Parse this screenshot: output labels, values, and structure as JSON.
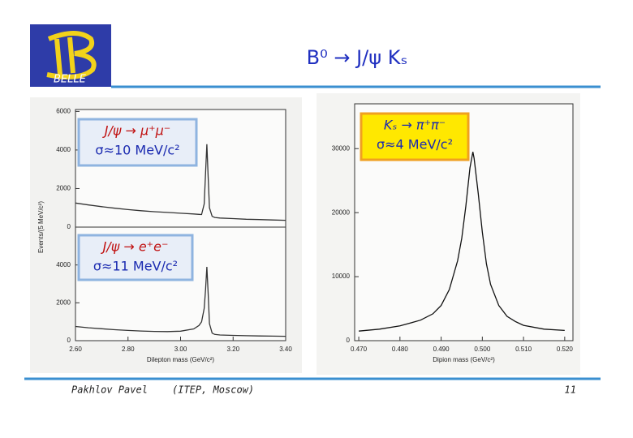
{
  "slide": {
    "title": "B⁰ → J/ψ Kₛ",
    "logo_text": "BELLE",
    "author": "Pakhlov Pavel",
    "affiliation": "(ITEP, Moscow)",
    "page_number": "11"
  },
  "chart_data": [
    {
      "type": "line",
      "annotation": [
        "J/ψ → μ⁺μ⁻",
        "σ≈10 MeV/c²"
      ],
      "ylabel": "Events/(5 MeV/c²)",
      "xlim": [
        2.6,
        3.4
      ],
      "ylim": [
        0,
        6100
      ],
      "yticks": [
        0,
        2000,
        4000,
        6000
      ],
      "series": [
        {
          "color": "#333333",
          "x": [
            2.6,
            2.65,
            2.7,
            2.75,
            2.8,
            2.85,
            2.9,
            2.95,
            3.0,
            3.05,
            3.07,
            3.08,
            3.09,
            3.095,
            3.1,
            3.105,
            3.11,
            3.12,
            3.13,
            3.15,
            3.2,
            3.25,
            3.3,
            3.35,
            3.4
          ],
          "values": [
            1250,
            1150,
            1060,
            980,
            910,
            850,
            800,
            760,
            720,
            680,
            660,
            650,
            1200,
            2800,
            4300,
            2600,
            1000,
            560,
            500,
            470,
            440,
            410,
            390,
            370,
            355
          ]
        }
      ]
    },
    {
      "type": "line",
      "annotation": [
        "J/ψ → e⁺e⁻",
        "σ≈11 MeV/c²"
      ],
      "xlabel": "Dilepton mass (GeV/c²)",
      "xlim": [
        2.6,
        3.4
      ],
      "ylim": [
        0,
        6000
      ],
      "yticks": [
        0,
        2000,
        4000
      ],
      "xticks": [
        {
          "value": 2.6,
          "label": "2.60"
        },
        {
          "value": 2.8,
          "label": "2.80"
        },
        {
          "value": 3.0,
          "label": "3.00"
        },
        {
          "value": 3.2,
          "label": "3.20"
        },
        {
          "value": 3.4,
          "label": "3.40"
        }
      ],
      "series": [
        {
          "color": "#333333",
          "x": [
            2.6,
            2.65,
            2.7,
            2.75,
            2.8,
            2.85,
            2.9,
            2.95,
            3.0,
            3.05,
            3.07,
            3.08,
            3.09,
            3.095,
            3.1,
            3.105,
            3.11,
            3.12,
            3.13,
            3.15,
            3.2,
            3.25,
            3.3,
            3.35,
            3.4
          ],
          "values": [
            750,
            680,
            630,
            580,
            540,
            510,
            490,
            480,
            500,
            620,
            800,
            1000,
            1700,
            2700,
            3900,
            2500,
            900,
            400,
            330,
            300,
            280,
            260,
            250,
            240,
            230
          ]
        }
      ]
    },
    {
      "type": "line",
      "annotation": [
        "Kₛ → π⁺π⁻",
        "σ≈4 MeV/c²"
      ],
      "xlabel": "Dipion mass (GeV/c²)",
      "xlim": [
        0.469,
        0.522
      ],
      "ylim": [
        0,
        37000
      ],
      "yticks": [
        0,
        10000,
        20000,
        30000
      ],
      "xticks": [
        {
          "value": 0.47,
          "label": "0.470"
        },
        {
          "value": 0.48,
          "label": "0.480"
        },
        {
          "value": 0.49,
          "label": "0.490"
        },
        {
          "value": 0.5,
          "label": "0.500"
        },
        {
          "value": 0.51,
          "label": "0.510"
        },
        {
          "value": 0.52,
          "label": "0.520"
        }
      ],
      "series": [
        {
          "color": "#111111",
          "x": [
            0.47,
            0.475,
            0.48,
            0.485,
            0.488,
            0.49,
            0.492,
            0.494,
            0.495,
            0.496,
            0.497,
            0.4977,
            0.498,
            0.499,
            0.5,
            0.501,
            0.502,
            0.504,
            0.506,
            0.508,
            0.51,
            0.515,
            0.52
          ],
          "values": [
            1500,
            1800,
            2300,
            3200,
            4200,
            5500,
            8000,
            12500,
            16000,
            21000,
            27000,
            29500,
            28500,
            23000,
            17000,
            12000,
            8800,
            5500,
            3800,
            3000,
            2400,
            1800,
            1600
          ]
        }
      ]
    }
  ]
}
